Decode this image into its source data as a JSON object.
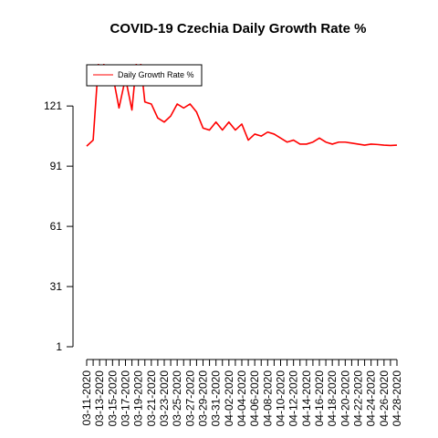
{
  "chart_data": {
    "type": "line",
    "title": "COVID-19 Czechia Daily Growth Rate %",
    "xlabel": "",
    "ylabel": "",
    "x": [
      "03-11-2020",
      "03-12-2020",
      "03-13-2020",
      "03-14-2020",
      "03-15-2020",
      "03-16-2020",
      "03-17-2020",
      "03-18-2020",
      "03-19-2020",
      "03-20-2020",
      "03-21-2020",
      "03-22-2020",
      "03-23-2020",
      "03-24-2020",
      "03-25-2020",
      "03-26-2020",
      "03-27-2020",
      "03-28-2020",
      "03-29-2020",
      "03-30-2020",
      "03-31-2020",
      "04-01-2020",
      "04-02-2020",
      "04-03-2020",
      "04-04-2020",
      "04-05-2020",
      "04-06-2020",
      "04-07-2020",
      "04-08-2020",
      "04-09-2020",
      "04-10-2020",
      "04-11-2020",
      "04-12-2020",
      "04-13-2020",
      "04-14-2020",
      "04-15-2020",
      "04-16-2020",
      "04-17-2020",
      "04-18-2020",
      "04-19-2020",
      "04-20-2020",
      "04-21-2020",
      "04-22-2020",
      "04-23-2020",
      "04-24-2020",
      "04-25-2020",
      "04-26-2020",
      "04-27-2020",
      "04-28-2020"
    ],
    "x_tick_labels": [
      "03-11-2020",
      "03-13-2020",
      "03-15-2020",
      "03-17-2020",
      "03-19-2020",
      "03-21-2020",
      "03-23-2020",
      "03-25-2020",
      "03-27-2020",
      "03-29-2020",
      "03-31-2020",
      "04-02-2020",
      "04-04-2020",
      "04-06-2020",
      "04-08-2020",
      "04-10-2020",
      "04-12-2020",
      "04-14-2020",
      "04-16-2020",
      "04-18-2020",
      "04-20-2020",
      "04-22-2020",
      "04-24-2020",
      "04-26-2020",
      "04-28-2020"
    ],
    "yticks": [
      1,
      31,
      61,
      91,
      121
    ],
    "ylim": [
      1,
      142
    ],
    "series": [
      {
        "name": "Daily Growth Rate %",
        "color": "#ff0000",
        "values": [
          101,
          104,
          151,
          137,
          137,
          120,
          135,
          119,
          153,
          123,
          122,
          115,
          113,
          116,
          122,
          120,
          122,
          118,
          110,
          109,
          113,
          109,
          113,
          109,
          112,
          104,
          107,
          106,
          108,
          107,
          105,
          103,
          104,
          102,
          102,
          103,
          105,
          103,
          102,
          103,
          103,
          102.5,
          102,
          101.5,
          102,
          101.8,
          101.5,
          101.3,
          101.5
        ]
      }
    ],
    "legend": {
      "placement": "top-left",
      "entries": [
        "Daily Growth Rate %"
      ]
    },
    "grid": false
  }
}
